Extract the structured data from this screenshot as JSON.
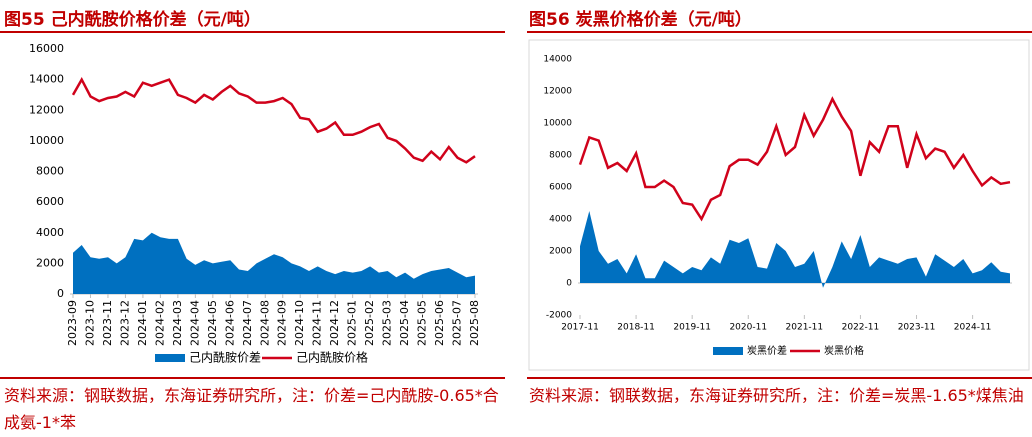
{
  "chart_data": [
    {
      "type": "line",
      "title": "图55  己内酰胺价格价差（元/吨）",
      "source": "资料来源：钢联数据，东海证券研究所，注：价差=己内酰胺-0.65*合成氨-1*苯",
      "categories": [
        "2023-09",
        null,
        "2023-10",
        null,
        "2023-11",
        null,
        "2023-12",
        null,
        "2024-01",
        null,
        "2024-02",
        null,
        "2024-03",
        null,
        "2024-04",
        null,
        "2024-05",
        null,
        "2024-06",
        null,
        "2024-07",
        null,
        "2024-08",
        null,
        "2024-09",
        null,
        "2024-10",
        null,
        "2024-11",
        null,
        "2024-12",
        null,
        "2025-01",
        null,
        "2025-02",
        null,
        "2025-03",
        null,
        "2025-04",
        null,
        "2025-05",
        null,
        "2025-06",
        null,
        "2025-07",
        null,
        "2025-08"
      ],
      "series": [
        {
          "name": "己内酰胺价差",
          "color": "#0070c0",
          "style": "area",
          "values": [
            2700,
            3200,
            2400,
            2300,
            2400,
            2000,
            2400,
            3600,
            3500,
            4000,
            3700,
            3600,
            3600,
            2300,
            1900,
            2200,
            2000,
            2100,
            2200,
            1600,
            1500,
            2000,
            2300,
            2600,
            2400,
            2000,
            1800,
            1500,
            1800,
            1500,
            1300,
            1500,
            1400,
            1500,
            1800,
            1400,
            1500,
            1100,
            1400,
            1000,
            1300,
            1500,
            1600,
            1700,
            1400,
            1100,
            1200
          ]
        },
        {
          "name": "己内酰胺价格",
          "color": "#d0021b",
          "style": "line",
          "values": [
            13000,
            14000,
            12900,
            12600,
            12800,
            12900,
            13200,
            12900,
            13800,
            13600,
            13800,
            14000,
            13000,
            12800,
            12500,
            13000,
            12700,
            13200,
            13600,
            13100,
            12900,
            12500,
            12500,
            12600,
            12800,
            12400,
            11500,
            11400,
            10600,
            10800,
            11200,
            10400,
            10400,
            10600,
            10900,
            11100,
            10200,
            10000,
            9500,
            8900,
            8700,
            9300,
            8800,
            9600,
            8900,
            8600,
            9000
          ]
        }
      ],
      "ylim": [
        0,
        16000
      ],
      "yticks": [
        0,
        2000,
        4000,
        6000,
        8000,
        10000,
        12000,
        14000,
        16000
      ]
    },
    {
      "type": "line",
      "title": "图56  炭黑价格价差（元/吨）",
      "source": "资料来源：钢联数据，东海证券研究所，注：价差=炭黑-1.65*煤焦油",
      "categories": [
        "2017-11",
        null,
        null,
        null,
        null,
        null,
        "2018-11",
        null,
        null,
        null,
        null,
        null,
        "2019-11",
        null,
        null,
        null,
        null,
        null,
        "2020-11",
        null,
        null,
        null,
        null,
        null,
        "2021-11",
        null,
        null,
        null,
        null,
        null,
        "2022-11",
        null,
        null,
        null,
        null,
        null,
        "2023-11",
        null,
        null,
        null,
        null,
        null,
        "2024-11",
        null,
        null,
        null,
        null
      ],
      "series": [
        {
          "name": "炭黑价差",
          "color": "#0070c0",
          "style": "area",
          "values": [
            2300,
            4500,
            2000,
            1200,
            1500,
            600,
            1800,
            300,
            300,
            1400,
            1000,
            600,
            1000,
            800,
            1600,
            1200,
            2700,
            2500,
            2800,
            1000,
            900,
            2500,
            2000,
            1000,
            1200,
            2000,
            -300,
            1000,
            2600,
            1500,
            3000,
            1000,
            1600,
            1400,
            1200,
            1500,
            1600,
            400,
            1800,
            1400,
            1000,
            1500,
            600,
            800,
            1300,
            700,
            600
          ]
        },
        {
          "name": "炭黑价格",
          "color": "#d0021b",
          "style": "line",
          "values": [
            7400,
            9100,
            8900,
            7200,
            7500,
            7000,
            8100,
            6000,
            6000,
            6400,
            6000,
            5000,
            4900,
            4000,
            5200,
            5500,
            7300,
            7700,
            7700,
            7400,
            8200,
            9800,
            8000,
            8500,
            10500,
            9200,
            10200,
            11500,
            10400,
            9500,
            6700,
            8800,
            8200,
            9800,
            9800,
            7200,
            9300,
            7800,
            8400,
            8200,
            7200,
            8000,
            7000,
            6100,
            6600,
            6200,
            6300
          ]
        }
      ],
      "ylim": [
        -2000,
        14000
      ],
      "yticks": [
        -2000,
        0,
        2000,
        4000,
        6000,
        8000,
        10000,
        12000,
        14000
      ]
    }
  ]
}
